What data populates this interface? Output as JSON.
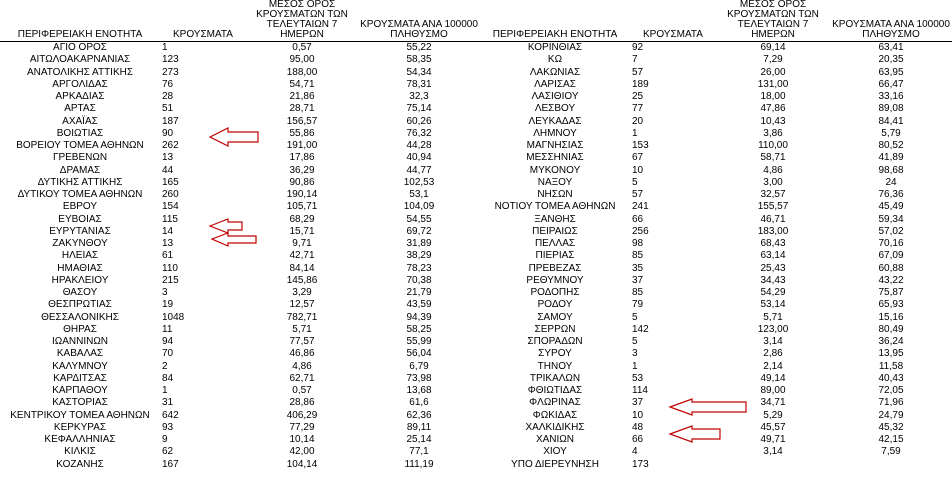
{
  "headers": {
    "region": "ΠΕΡΙΦΕΡΕΙΑΚΗ ΕΝΟΤΗΤΑ",
    "cases": "ΚΡΟΥΣΜΑΤΑ",
    "avg7": "ΜΕΣΟΣ ΟΡΟΣ ΚΡΟΥΣΜΑΤΩΝ ΤΩΝ ΤΕΛΕΥΤΑΙΩΝ 7 ΗΜΕΡΩΝ",
    "per100k": "ΚΡΟΥΣΜΑΤΑ ΑΝΑ 100000 ΠΛΗΘΥΣΜΟ"
  },
  "left_rows": [
    {
      "region": "ΑΓΙΟ ΟΡΟΣ",
      "cases": "1",
      "avg7": "0,57",
      "per100k": "55,22"
    },
    {
      "region": "ΑΙΤΩΛΟΑΚΑΡΝΑΝΙΑΣ",
      "cases": "123",
      "avg7": "95,00",
      "per100k": "58,35"
    },
    {
      "region": "ΑΝΑΤΟΛΙΚΗΣ ΑΤΤΙΚΗΣ",
      "cases": "273",
      "avg7": "188,00",
      "per100k": "54,34"
    },
    {
      "region": "ΑΡΓΟΛΙΔΑΣ",
      "cases": "76",
      "avg7": "54,71",
      "per100k": "78,31"
    },
    {
      "region": "ΑΡΚΑΔΙΑΣ",
      "cases": "28",
      "avg7": "21,86",
      "per100k": "32,3"
    },
    {
      "region": "ΑΡΤΑΣ",
      "cases": "51",
      "avg7": "28,71",
      "per100k": "75,14"
    },
    {
      "region": "ΑΧΑΪΑΣ",
      "cases": "187",
      "avg7": "156,57",
      "per100k": "60,26"
    },
    {
      "region": "ΒΟΙΩΤΙΑΣ",
      "cases": "90",
      "avg7": "55,86",
      "per100k": "76,32"
    },
    {
      "region": "ΒΟΡΕΙΟΥ ΤΟΜΕΑ ΑΘΗΝΩΝ",
      "cases": "262",
      "avg7": "191,00",
      "per100k": "44,28"
    },
    {
      "region": "ΓΡΕΒΕΝΩΝ",
      "cases": "13",
      "avg7": "17,86",
      "per100k": "40,94"
    },
    {
      "region": "ΔΡΑΜΑΣ",
      "cases": "44",
      "avg7": "36,29",
      "per100k": "44,77"
    },
    {
      "region": "ΔΥΤΙΚΗΣ ΑΤΤΙΚΗΣ",
      "cases": "165",
      "avg7": "90,86",
      "per100k": "102,53"
    },
    {
      "region": "ΔΥΤΙΚΟΥ ΤΟΜΕΑ ΑΘΗΝΩΝ",
      "cases": "260",
      "avg7": "190,14",
      "per100k": "53,1"
    },
    {
      "region": "ΕΒΡΟΥ",
      "cases": "154",
      "avg7": "105,71",
      "per100k": "104,09"
    },
    {
      "region": "ΕΥΒΟΙΑΣ",
      "cases": "115",
      "avg7": "68,29",
      "per100k": "54,55"
    },
    {
      "region": "ΕΥΡΥΤΑΝΙΑΣ",
      "cases": "14",
      "avg7": "15,71",
      "per100k": "69,72"
    },
    {
      "region": "ΖΑΚΥΝΘΟΥ",
      "cases": "13",
      "avg7": "9,71",
      "per100k": "31,89"
    },
    {
      "region": "ΗΛΕΙΑΣ",
      "cases": "61",
      "avg7": "42,71",
      "per100k": "38,29"
    },
    {
      "region": "ΗΜΑΘΙΑΣ",
      "cases": "110",
      "avg7": "84,14",
      "per100k": "78,23"
    },
    {
      "region": "ΗΡΑΚΛΕΙΟΥ",
      "cases": "215",
      "avg7": "145,86",
      "per100k": "70,38"
    },
    {
      "region": "ΘΑΣΟΥ",
      "cases": "3",
      "avg7": "3,29",
      "per100k": "21,79"
    },
    {
      "region": "ΘΕΣΠΡΩΤΙΑΣ",
      "cases": "19",
      "avg7": "12,57",
      "per100k": "43,59"
    },
    {
      "region": "ΘΕΣΣΑΛΟΝΙΚΗΣ",
      "cases": "1048",
      "avg7": "782,71",
      "per100k": "94,39"
    },
    {
      "region": "ΘΗΡΑΣ",
      "cases": "11",
      "avg7": "5,71",
      "per100k": "58,25"
    },
    {
      "region": "ΙΩΑΝΝΙΝΩΝ",
      "cases": "94",
      "avg7": "77,57",
      "per100k": "55,99"
    },
    {
      "region": "ΚΑΒΑΛΑΣ",
      "cases": "70",
      "avg7": "46,86",
      "per100k": "56,04"
    },
    {
      "region": "ΚΑΛΥΜΝΟΥ",
      "cases": "2",
      "avg7": "4,86",
      "per100k": "6,79"
    },
    {
      "region": "ΚΑΡΔΙΤΣΑΣ",
      "cases": "84",
      "avg7": "62,71",
      "per100k": "73,98"
    },
    {
      "region": "ΚΑΡΠΑΘΟΥ",
      "cases": "1",
      "avg7": "0,57",
      "per100k": "13,68"
    },
    {
      "region": "ΚΑΣΤΟΡΙΑΣ",
      "cases": "31",
      "avg7": "28,86",
      "per100k": "61,6"
    },
    {
      "region": "ΚΕΝΤΡΙΚΟΥ ΤΟΜΕΑ ΑΘΗΝΩΝ",
      "cases": "642",
      "avg7": "406,29",
      "per100k": "62,36"
    },
    {
      "region": "ΚΕΡΚΥΡΑΣ",
      "cases": "93",
      "avg7": "77,29",
      "per100k": "89,11"
    },
    {
      "region": "ΚΕΦΑΛΛΗΝΙΑΣ",
      "cases": "9",
      "avg7": "10,14",
      "per100k": "25,14"
    },
    {
      "region": "ΚΙΛΚΙΣ",
      "cases": "62",
      "avg7": "42,00",
      "per100k": "77,1"
    },
    {
      "region": "ΚΟΖΑΝΗΣ",
      "cases": "167",
      "avg7": "104,14",
      "per100k": "111,19"
    }
  ],
  "right_rows": [
    {
      "region": "ΚΟΡΙΝΘΙΑΣ",
      "cases": "92",
      "avg7": "69,14",
      "per100k": "63,41"
    },
    {
      "region": "ΚΩ",
      "cases": "7",
      "avg7": "7,29",
      "per100k": "20,35"
    },
    {
      "region": "ΛΑΚΩΝΙΑΣ",
      "cases": "57",
      "avg7": "26,00",
      "per100k": "63,95"
    },
    {
      "region": "ΛΑΡΙΣΑΣ",
      "cases": "189",
      "avg7": "131,00",
      "per100k": "66,47"
    },
    {
      "region": "ΛΑΣΙΘΙΟΥ",
      "cases": "25",
      "avg7": "18,00",
      "per100k": "33,16"
    },
    {
      "region": "ΛΕΣΒΟΥ",
      "cases": "77",
      "avg7": "47,86",
      "per100k": "89,08"
    },
    {
      "region": "ΛΕΥΚΑΔΑΣ",
      "cases": "20",
      "avg7": "10,43",
      "per100k": "84,41"
    },
    {
      "region": "ΛΗΜΝΟΥ",
      "cases": "1",
      "avg7": "3,86",
      "per100k": "5,79"
    },
    {
      "region": "ΜΑΓΝΗΣΙΑΣ",
      "cases": "153",
      "avg7": "110,00",
      "per100k": "80,52"
    },
    {
      "region": "ΜΕΣΣΗΝΙΑΣ",
      "cases": "67",
      "avg7": "58,71",
      "per100k": "41,89"
    },
    {
      "region": "ΜΥΚΟΝΟΥ",
      "cases": "10",
      "avg7": "4,86",
      "per100k": "98,68"
    },
    {
      "region": "ΝΑΞΟΥ",
      "cases": "5",
      "avg7": "3,00",
      "per100k": "24"
    },
    {
      "region": "ΝΗΣΩΝ",
      "cases": "57",
      "avg7": "32,57",
      "per100k": "76,36"
    },
    {
      "region": "ΝΟΤΙΟΥ ΤΟΜΕΑ ΑΘΗΝΩΝ",
      "cases": "241",
      "avg7": "155,57",
      "per100k": "45,49"
    },
    {
      "region": "ΞΑΝΘΗΣ",
      "cases": "66",
      "avg7": "46,71",
      "per100k": "59,34"
    },
    {
      "region": "ΠΕΙΡΑΙΩΣ",
      "cases": "256",
      "avg7": "183,00",
      "per100k": "57,02"
    },
    {
      "region": "ΠΕΛΛΑΣ",
      "cases": "98",
      "avg7": "68,43",
      "per100k": "70,16"
    },
    {
      "region": "ΠΙΕΡΙΑΣ",
      "cases": "85",
      "avg7": "63,14",
      "per100k": "67,09"
    },
    {
      "region": "ΠΡΕΒΕΖΑΣ",
      "cases": "35",
      "avg7": "25,43",
      "per100k": "60,88"
    },
    {
      "region": "ΡΕΘΥΜΝΟΥ",
      "cases": "37",
      "avg7": "34,43",
      "per100k": "43,22"
    },
    {
      "region": "ΡΟΔΟΠΗΣ",
      "cases": "85",
      "avg7": "54,29",
      "per100k": "75,87"
    },
    {
      "region": "ΡΟΔΟΥ",
      "cases": "79",
      "avg7": "53,14",
      "per100k": "65,93"
    },
    {
      "region": "ΣΑΜΟΥ",
      "cases": "5",
      "avg7": "5,71",
      "per100k": "15,16"
    },
    {
      "region": "ΣΕΡΡΩΝ",
      "cases": "142",
      "avg7": "123,00",
      "per100k": "80,49"
    },
    {
      "region": "ΣΠΟΡΑΔΩΝ",
      "cases": "5",
      "avg7": "3,14",
      "per100k": "36,24"
    },
    {
      "region": "ΣΥΡΟΥ",
      "cases": "3",
      "avg7": "2,86",
      "per100k": "13,95"
    },
    {
      "region": "ΤΗΝΟΥ",
      "cases": "1",
      "avg7": "2,14",
      "per100k": "11,58"
    },
    {
      "region": "ΤΡΙΚΑΛΩΝ",
      "cases": "53",
      "avg7": "49,14",
      "per100k": "40,43"
    },
    {
      "region": "ΦΘΙΩΤΙΔΑΣ",
      "cases": "114",
      "avg7": "89,00",
      "per100k": "72,05"
    },
    {
      "region": "ΦΛΩΡΙΝΑΣ",
      "cases": "37",
      "avg7": "34,71",
      "per100k": "71,96"
    },
    {
      "region": "ΦΩΚΙΔΑΣ",
      "cases": "10",
      "avg7": "5,29",
      "per100k": "24,79"
    },
    {
      "region": "ΧΑΛΚΙΔΙΚΗΣ",
      "cases": "48",
      "avg7": "45,57",
      "per100k": "45,32"
    },
    {
      "region": "ΧΑΝΙΩΝ",
      "cases": "66",
      "avg7": "49,71",
      "per100k": "42,15"
    },
    {
      "region": "ΧΙΟΥ",
      "cases": "4",
      "avg7": "3,14",
      "per100k": "7,59"
    },
    {
      "region": "ΥΠΟ ΔΙΕΡΕΥΝΗΣΗ",
      "cases": "173",
      "avg7": "",
      "per100k": ""
    }
  ],
  "highlight_color": "#c00000"
}
